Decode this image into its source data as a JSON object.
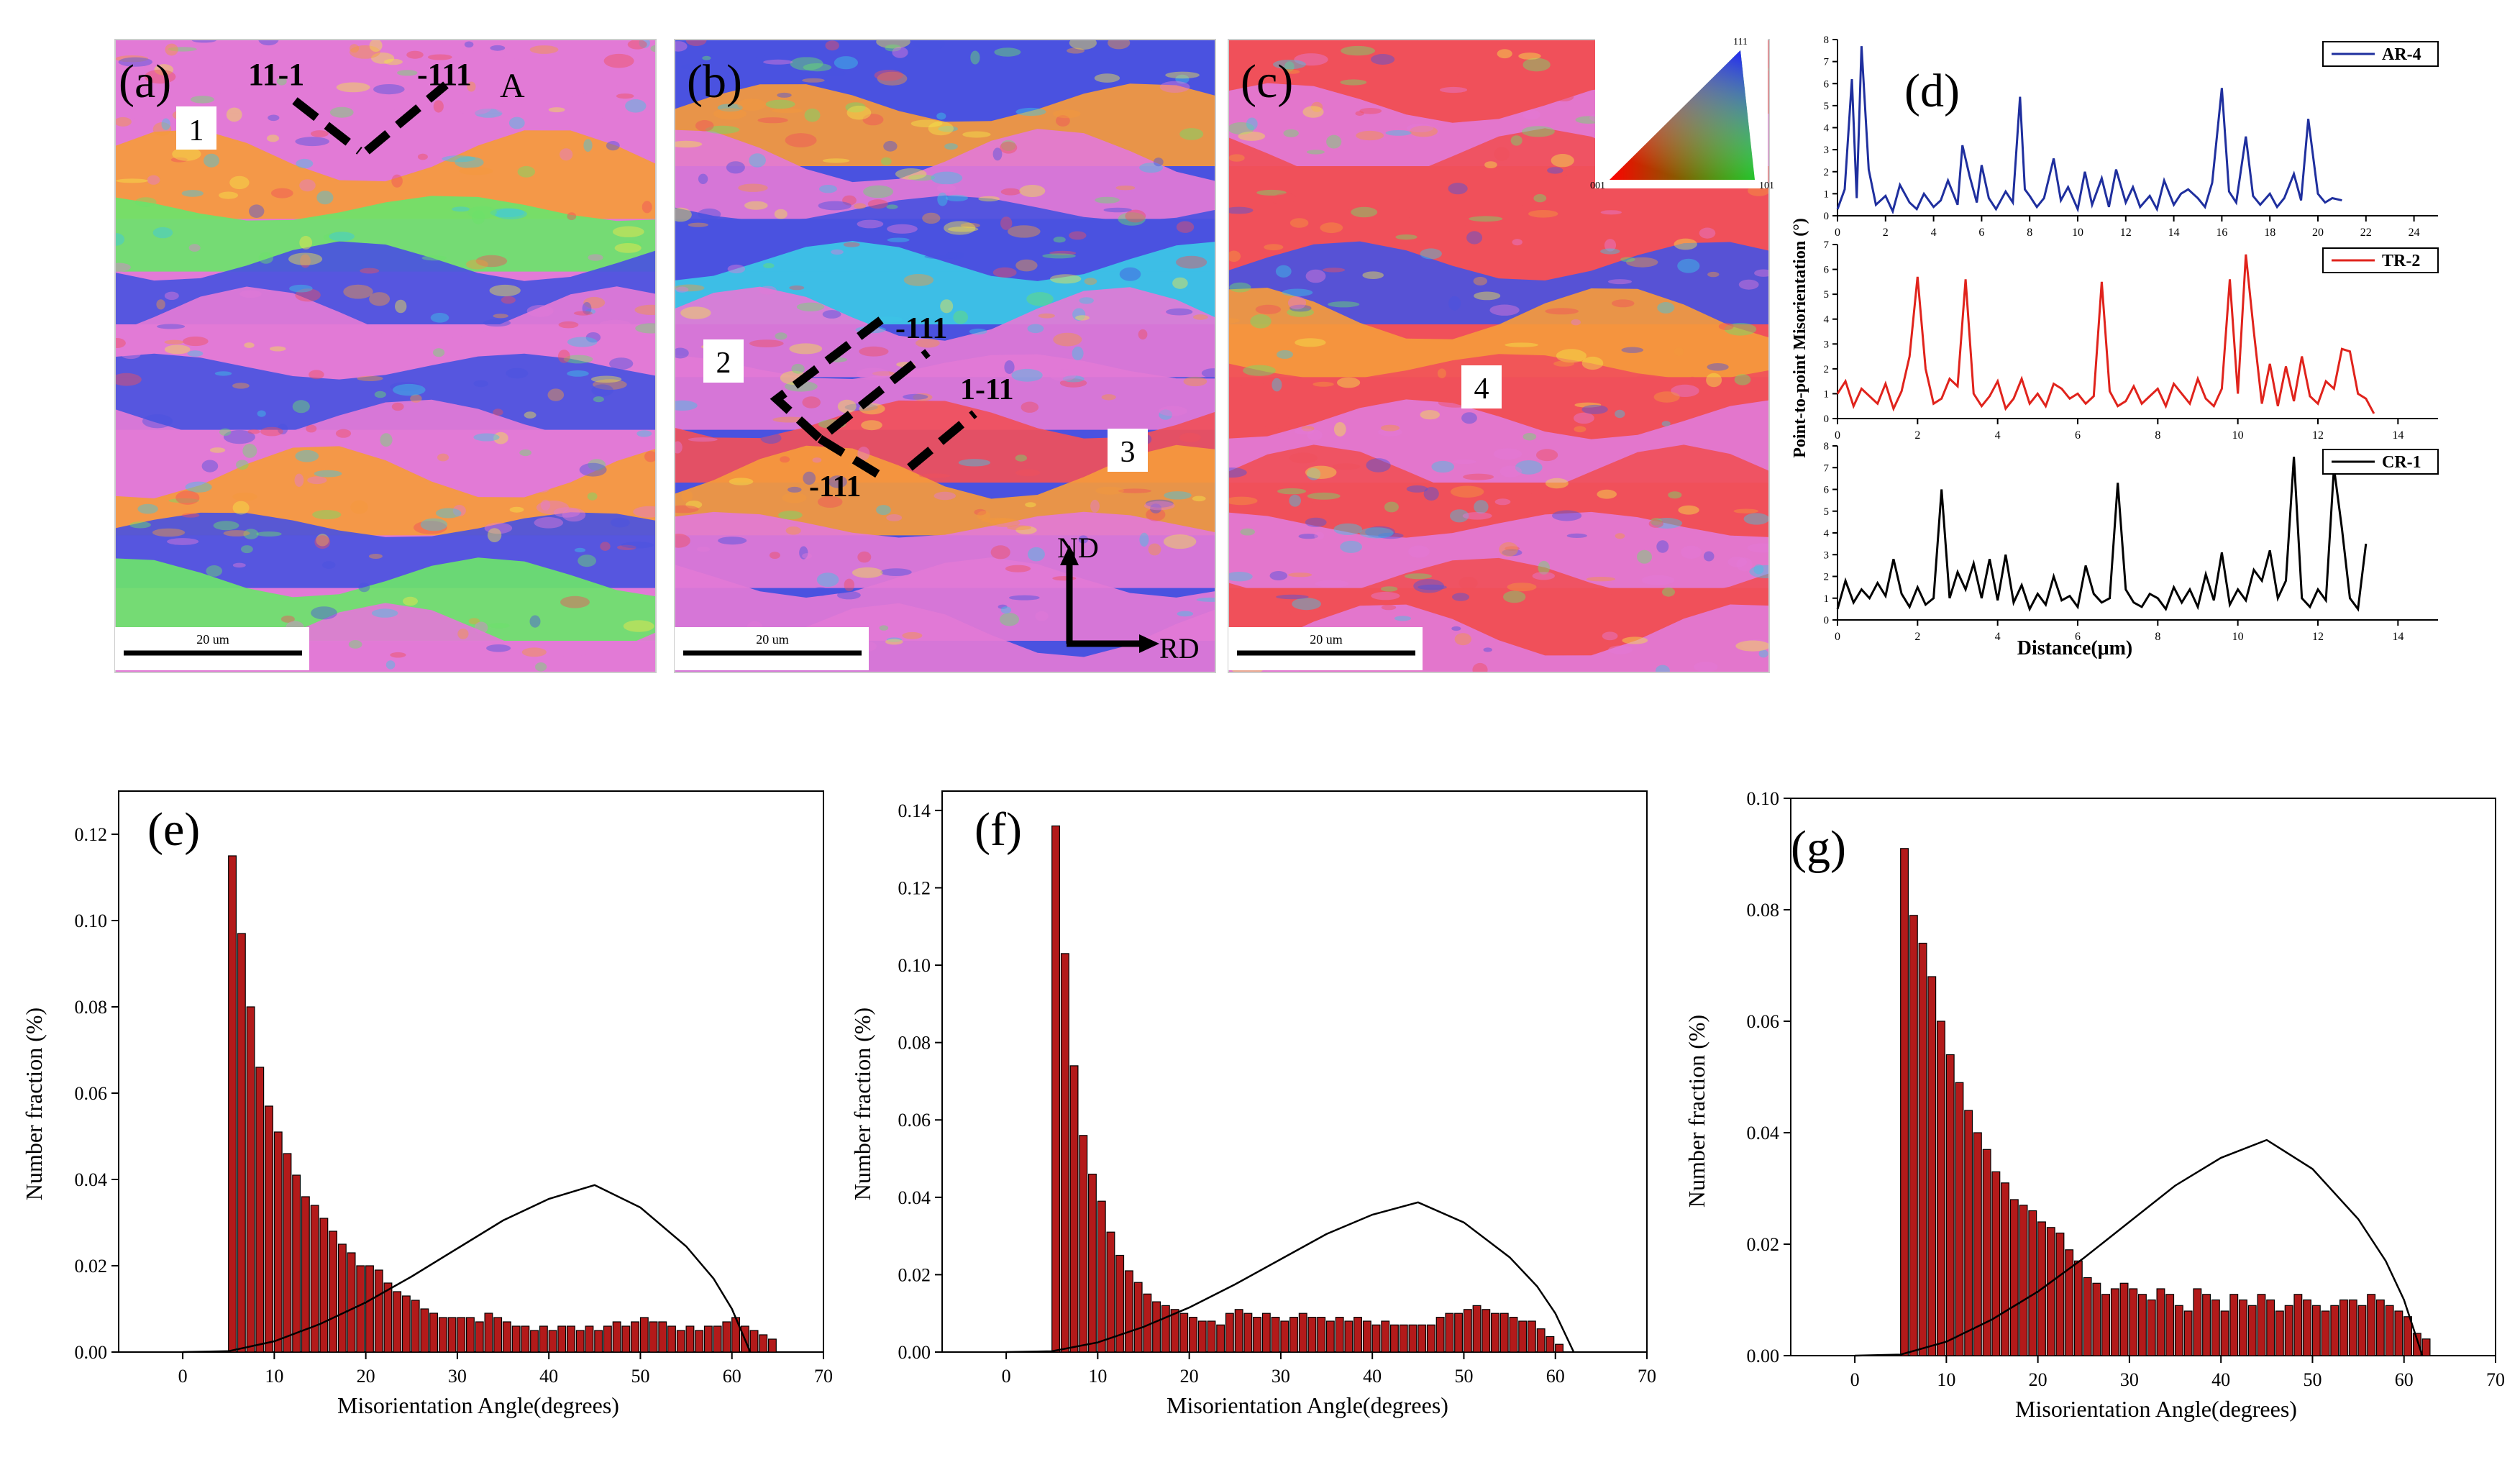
{
  "colors": {
    "bar_fill": "#b31a1a",
    "bar_stroke": "#000000",
    "curve": "#000000",
    "ar4": "#1f2f9e",
    "tr2": "#e0231c",
    "cr1": "#000000",
    "map_pink": "#e27ad6",
    "map_red": "#f0505a",
    "map_blue": "#4a52e0",
    "map_green": "#6be36b",
    "map_yellow": "#f4e64a",
    "map_orange": "#f59a3c",
    "map_cyan": "#3cc8e6"
  },
  "maps": [
    {
      "id": "a",
      "panel_label": "(a)",
      "scale_label": "20 um",
      "annotations": [
        "11-1",
        "-111",
        "A",
        "1"
      ],
      "stripes": [
        "map_pink",
        "map_pink",
        "map_orange",
        "map_green",
        "map_blue",
        "map_pink",
        "map_blue",
        "map_pink",
        "map_orange",
        "map_blue",
        "map_green",
        "map_pink"
      ]
    },
    {
      "id": "b",
      "panel_label": "(b)",
      "scale_label": "20 um",
      "annotations": [
        "-111",
        "1-11",
        "-111",
        "2",
        "3"
      ],
      "axes": {
        "nd": "ND",
        "rd": "RD"
      },
      "stripes": [
        "map_blue",
        "map_orange",
        "map_pink",
        "map_blue",
        "map_cyan",
        "map_pink",
        "map_pink",
        "map_red",
        "map_orange",
        "map_pink",
        "map_pink",
        "map_pink"
      ]
    },
    {
      "id": "c",
      "panel_label": "(c)",
      "scale_label": "20 um",
      "annotations": [
        "4"
      ],
      "ipf_legend_labels": [
        "111",
        "001",
        "101"
      ],
      "stripes": [
        "map_red",
        "map_pink",
        "map_red",
        "map_red",
        "map_blue",
        "map_orange",
        "map_red",
        "map_pink",
        "map_red",
        "map_pink",
        "map_red",
        "map_pink"
      ]
    }
  ],
  "chart_data": [
    {
      "type": "line",
      "panel_label": "(d)",
      "ylabel": "Point-to-point Misorientation  (°)",
      "xlabel": "Distance(μm)",
      "subplots": [
        {
          "name": "AR-4",
          "color_key": "ar4",
          "xlim": [
            0,
            25
          ],
          "ylim": [
            0,
            8
          ],
          "xticks": [
            0,
            2,
            4,
            6,
            8,
            10,
            12,
            14,
            16,
            18,
            20,
            22,
            24
          ],
          "yticks": [
            0,
            1,
            2,
            3,
            4,
            5,
            6,
            7,
            8
          ],
          "x": [
            0,
            0.3,
            0.6,
            0.8,
            1.0,
            1.3,
            1.6,
            2.0,
            2.3,
            2.6,
            3.0,
            3.3,
            3.6,
            4.0,
            4.3,
            4.6,
            5.0,
            5.2,
            5.5,
            5.8,
            6.0,
            6.3,
            6.6,
            7.0,
            7.3,
            7.6,
            7.8,
            8.0,
            8.3,
            8.6,
            9.0,
            9.3,
            9.6,
            10.0,
            10.3,
            10.6,
            11.0,
            11.3,
            11.6,
            12.0,
            12.3,
            12.6,
            13.0,
            13.3,
            13.6,
            14.0,
            14.3,
            14.6,
            15.0,
            15.3,
            15.6,
            16.0,
            16.3,
            16.6,
            17.0,
            17.3,
            17.6,
            18.0,
            18.3,
            18.6,
            19.0,
            19.3,
            19.6,
            20.0,
            20.3,
            20.6,
            21.0
          ],
          "values": [
            0.3,
            1.2,
            6.2,
            0.8,
            7.7,
            2.1,
            0.5,
            0.9,
            0.2,
            1.4,
            0.6,
            0.3,
            1.0,
            0.4,
            0.7,
            1.6,
            0.5,
            3.2,
            1.8,
            0.6,
            2.3,
            0.8,
            0.3,
            1.1,
            0.6,
            5.4,
            1.2,
            0.9,
            0.4,
            0.8,
            2.6,
            0.7,
            1.3,
            0.3,
            2.0,
            0.5,
            1.7,
            0.4,
            2.1,
            0.6,
            1.3,
            0.4,
            0.9,
            0.3,
            1.6,
            0.5,
            1.0,
            1.2,
            0.8,
            0.4,
            1.5,
            5.8,
            1.1,
            0.6,
            3.6,
            0.9,
            0.5,
            1.0,
            0.4,
            0.8,
            1.9,
            0.7,
            4.4,
            1.0,
            0.6,
            0.8,
            0.7
          ]
        },
        {
          "name": "TR-2",
          "color_key": "tr2",
          "xlim": [
            0,
            15
          ],
          "ylim": [
            0,
            7
          ],
          "xticks": [
            0,
            2,
            4,
            6,
            8,
            10,
            12,
            14
          ],
          "yticks": [
            0,
            1,
            2,
            3,
            4,
            5,
            6,
            7
          ],
          "x": [
            0,
            0.2,
            0.4,
            0.6,
            0.8,
            1.0,
            1.2,
            1.4,
            1.6,
            1.8,
            2.0,
            2.2,
            2.4,
            2.6,
            2.8,
            3.0,
            3.2,
            3.4,
            3.6,
            3.8,
            4.0,
            4.2,
            4.4,
            4.6,
            4.8,
            5.0,
            5.2,
            5.4,
            5.6,
            5.8,
            6.0,
            6.2,
            6.4,
            6.6,
            6.8,
            7.0,
            7.2,
            7.4,
            7.6,
            7.8,
            8.0,
            8.2,
            8.4,
            8.6,
            8.8,
            9.0,
            9.2,
            9.4,
            9.6,
            9.8,
            10.0,
            10.2,
            10.4,
            10.6,
            10.8,
            11.0,
            11.2,
            11.4,
            11.6,
            11.8,
            12.0,
            12.2,
            12.4,
            12.6,
            12.8,
            13.0,
            13.2,
            13.4
          ],
          "values": [
            1.0,
            1.5,
            0.5,
            1.2,
            0.9,
            0.6,
            1.4,
            0.4,
            1.1,
            2.5,
            5.7,
            2.0,
            0.6,
            0.8,
            1.6,
            1.3,
            5.6,
            1.0,
            0.5,
            0.9,
            1.5,
            0.4,
            0.8,
            1.6,
            0.6,
            1.0,
            0.5,
            1.4,
            1.2,
            0.8,
            1.0,
            0.6,
            0.9,
            5.5,
            1.1,
            0.5,
            0.7,
            1.3,
            0.6,
            0.9,
            1.2,
            0.5,
            1.4,
            1.0,
            0.6,
            1.6,
            0.8,
            0.5,
            1.2,
            5.6,
            1.0,
            6.6,
            3.5,
            0.6,
            2.2,
            0.5,
            2.1,
            0.7,
            2.5,
            0.9,
            0.6,
            1.5,
            1.2,
            2.8,
            2.7,
            1.0,
            0.8,
            0.2
          ]
        },
        {
          "name": "CR-1",
          "color_key": "cr1",
          "xlim": [
            0,
            15
          ],
          "ylim": [
            0,
            8
          ],
          "xticks": [
            0,
            2,
            4,
            6,
            8,
            10,
            12,
            14
          ],
          "yticks": [
            0,
            1,
            2,
            3,
            4,
            5,
            6,
            7,
            8
          ],
          "x": [
            0,
            0.2,
            0.4,
            0.6,
            0.8,
            1.0,
            1.2,
            1.4,
            1.6,
            1.8,
            2.0,
            2.2,
            2.4,
            2.6,
            2.8,
            3.0,
            3.2,
            3.4,
            3.6,
            3.8,
            4.0,
            4.2,
            4.4,
            4.6,
            4.8,
            5.0,
            5.2,
            5.4,
            5.6,
            5.8,
            6.0,
            6.2,
            6.4,
            6.6,
            6.8,
            7.0,
            7.2,
            7.4,
            7.6,
            7.8,
            8.0,
            8.2,
            8.4,
            8.6,
            8.8,
            9.0,
            9.2,
            9.4,
            9.6,
            9.8,
            10.0,
            10.2,
            10.4,
            10.6,
            10.8,
            11.0,
            11.2,
            11.4,
            11.6,
            11.8,
            12.0,
            12.2,
            12.4,
            12.6,
            12.8,
            13.0,
            13.2
          ],
          "values": [
            0.5,
            1.8,
            0.8,
            1.4,
            1.0,
            1.7,
            1.1,
            2.8,
            1.2,
            0.6,
            1.5,
            0.7,
            1.0,
            6.0,
            1.0,
            2.2,
            1.4,
            2.6,
            1.0,
            2.8,
            0.9,
            3.0,
            0.8,
            1.6,
            0.5,
            1.2,
            0.7,
            2.0,
            0.9,
            1.1,
            0.6,
            2.5,
            1.2,
            0.8,
            1.0,
            6.3,
            1.4,
            0.8,
            0.6,
            1.2,
            1.0,
            0.5,
            1.5,
            0.8,
            1.4,
            0.6,
            2.1,
            0.9,
            3.1,
            0.7,
            1.4,
            0.9,
            2.3,
            1.8,
            3.2,
            1.0,
            1.8,
            7.5,
            1.0,
            0.6,
            1.4,
            0.9,
            7.0,
            4.2,
            1.0,
            0.5,
            3.5
          ]
        }
      ]
    },
    {
      "type": "bar",
      "panel_label": "(e)",
      "xlabel": "Misorientation Angle(degrees)",
      "ylabel": "Number fraction  (%)",
      "xlim": [
        -7,
        70
      ],
      "ylim": [
        0,
        0.13
      ],
      "xticks": [
        0,
        10,
        20,
        30,
        40,
        50,
        60,
        70
      ],
      "yticks": [
        0.0,
        0.02,
        0.04,
        0.06,
        0.08,
        0.1,
        0.12
      ],
      "yticklabels": [
        "0.00",
        "0.02",
        "0.04",
        "0.06",
        "0.08",
        "0.10",
        "0.12"
      ],
      "bin_start": 5,
      "bin_width": 1,
      "values": [
        0.115,
        0.097,
        0.08,
        0.066,
        0.057,
        0.051,
        0.046,
        0.041,
        0.036,
        0.034,
        0.031,
        0.028,
        0.025,
        0.023,
        0.02,
        0.02,
        0.019,
        0.016,
        0.014,
        0.013,
        0.012,
        0.01,
        0.009,
        0.008,
        0.008,
        0.008,
        0.008,
        0.007,
        0.009,
        0.008,
        0.007,
        0.006,
        0.006,
        0.005,
        0.006,
        0.005,
        0.006,
        0.006,
        0.005,
        0.006,
        0.005,
        0.006,
        0.007,
        0.006,
        0.007,
        0.008,
        0.007,
        0.007,
        0.006,
        0.005,
        0.006,
        0.005,
        0.006,
        0.006,
        0.007,
        0.008,
        0.006,
        0.005,
        0.004,
        0.003
      ],
      "mackenzie_x": [
        0,
        5,
        10,
        15,
        20,
        25,
        30,
        35,
        40,
        45,
        50,
        55,
        58,
        60,
        61,
        62
      ],
      "mackenzie_y": [
        0.0,
        0.0002,
        0.0025,
        0.0065,
        0.0115,
        0.0175,
        0.024,
        0.0305,
        0.0355,
        0.0387,
        0.0335,
        0.0245,
        0.017,
        0.01,
        0.005,
        0.0
      ]
    },
    {
      "type": "bar",
      "panel_label": "(f)",
      "xlabel": "Misorientation Angle(degrees)",
      "ylabel": "Number fraction  (%)",
      "xlim": [
        -7,
        70
      ],
      "ylim": [
        0,
        0.145
      ],
      "xticks": [
        0,
        10,
        20,
        30,
        40,
        50,
        60,
        70
      ],
      "yticks": [
        0.0,
        0.02,
        0.04,
        0.06,
        0.08,
        0.1,
        0.12,
        0.14
      ],
      "yticklabels": [
        "0.00",
        "0.02",
        "0.04",
        "0.06",
        "0.08",
        "0.10",
        "0.12",
        "0.14"
      ],
      "bin_start": 5,
      "bin_width": 1,
      "values": [
        0.136,
        0.103,
        0.074,
        0.056,
        0.046,
        0.039,
        0.031,
        0.025,
        0.021,
        0.018,
        0.015,
        0.013,
        0.012,
        0.011,
        0.01,
        0.009,
        0.008,
        0.008,
        0.007,
        0.01,
        0.011,
        0.01,
        0.009,
        0.01,
        0.009,
        0.008,
        0.009,
        0.01,
        0.009,
        0.009,
        0.008,
        0.009,
        0.008,
        0.009,
        0.008,
        0.007,
        0.008,
        0.007,
        0.007,
        0.007,
        0.007,
        0.007,
        0.009,
        0.01,
        0.01,
        0.011,
        0.012,
        0.011,
        0.01,
        0.01,
        0.009,
        0.008,
        0.008,
        0.006,
        0.004,
        0.002
      ],
      "mackenzie_x": [
        0,
        5,
        10,
        15,
        20,
        25,
        30,
        35,
        40,
        45,
        50,
        55,
        58,
        60,
        61,
        62
      ],
      "mackenzie_y": [
        0.0,
        0.0002,
        0.0025,
        0.0065,
        0.0115,
        0.0175,
        0.024,
        0.0305,
        0.0355,
        0.0387,
        0.0335,
        0.0245,
        0.017,
        0.01,
        0.005,
        0.0
      ]
    },
    {
      "type": "bar",
      "panel_label": "(g)",
      "xlabel": "Misorientation Angle(degrees)",
      "ylabel": "Number fraction  (%)",
      "xlim": [
        -7,
        70
      ],
      "ylim": [
        0,
        0.1
      ],
      "xticks": [
        0,
        10,
        20,
        30,
        40,
        50,
        60,
        70
      ],
      "yticks": [
        0.0,
        0.02,
        0.04,
        0.06,
        0.08,
        0.1
      ],
      "yticklabels": [
        "0.00",
        "0.02",
        "0.04",
        "0.06",
        "0.08",
        "0.10"
      ],
      "bin_start": 5,
      "bin_width": 1,
      "values": [
        0.091,
        0.079,
        0.074,
        0.068,
        0.06,
        0.054,
        0.049,
        0.044,
        0.04,
        0.037,
        0.033,
        0.031,
        0.028,
        0.027,
        0.026,
        0.024,
        0.023,
        0.022,
        0.019,
        0.017,
        0.014,
        0.013,
        0.011,
        0.012,
        0.013,
        0.012,
        0.011,
        0.01,
        0.012,
        0.011,
        0.009,
        0.008,
        0.012,
        0.011,
        0.01,
        0.008,
        0.011,
        0.01,
        0.009,
        0.011,
        0.01,
        0.008,
        0.009,
        0.011,
        0.01,
        0.009,
        0.008,
        0.009,
        0.01,
        0.01,
        0.009,
        0.011,
        0.01,
        0.009,
        0.008,
        0.007,
        0.004,
        0.003
      ],
      "mackenzie_x": [
        0,
        5,
        10,
        15,
        20,
        25,
        30,
        35,
        40,
        45,
        50,
        55,
        58,
        60,
        61,
        62
      ],
      "mackenzie_y": [
        0.0,
        0.0002,
        0.0025,
        0.0065,
        0.0115,
        0.0175,
        0.024,
        0.0305,
        0.0355,
        0.0387,
        0.0335,
        0.0245,
        0.017,
        0.01,
        0.005,
        0.0
      ]
    }
  ]
}
